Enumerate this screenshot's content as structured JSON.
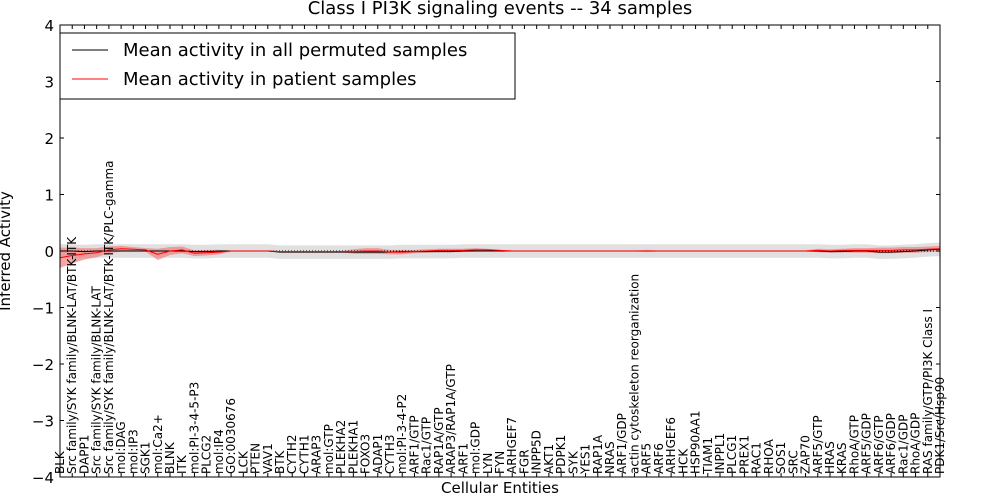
{
  "chart_data": {
    "type": "line",
    "title": "Class I PI3K signaling events -- 34 samples",
    "xlabel": "Cellular Entities",
    "ylabel": "Inferred Activity",
    "ylim": [
      -4,
      4
    ],
    "yticks": [
      "4",
      "3",
      "2",
      "1",
      "0",
      "−1",
      "−2",
      "−3",
      "−4"
    ],
    "ytick_values": [
      4,
      3,
      2,
      1,
      0,
      -1,
      -2,
      -3,
      -4
    ],
    "grid": false,
    "legend_position": "top-left",
    "categories": [
      "BLK",
      "Src family/SYK family/BLNK-LAT/BTK-ITK",
      "DAPP1",
      "Src family/SYK family/BLNK-LAT",
      "Src family/SYK family/BLNK-LAT/BTK-ITK/PLC-gamma",
      "mol:DAG",
      "mol:IP3",
      "SGK1",
      "mol:Ca2+",
      "BLNK",
      "ITK",
      "mol:PI-3-4-5-P3",
      "PLCG2",
      "mol:IP4",
      "GO:0030676",
      "LCK",
      "PTEN",
      "VAV1",
      "BTK",
      "CYTH2",
      "CYTH1",
      "ARAP3",
      "mol:GTP",
      "PLEKHA2",
      "PLEKHA1",
      "FOXO3",
      "ADAP1",
      "CYTH3",
      "mol:PI-3-4-P2",
      "ARF1/GTP",
      "Rac1/GTP",
      "RAP1A/GTP",
      "ARAP3/RAP1A/GTP",
      "ARF1",
      "mol:GDP",
      "LYN",
      "FYN",
      "ARHGEF7",
      "FGR",
      "INPP5D",
      "AKT1",
      "PDPK1",
      "SYK",
      "YES1",
      "RAP1A",
      "NRAS",
      "ARF1/GDP",
      "actin cytoskeleton reorganization",
      "ARF5",
      "ARF6",
      "ARHGEF6",
      "HCK",
      "HSP90AA1",
      "TIAM1",
      "INPPL1",
      "PLCG1",
      "PREX1",
      "RAC1",
      "RHOA",
      "SOS1",
      "SRC",
      "ZAP70",
      "ARF5/GTP",
      "HRAS",
      "KRAS",
      "RhoA/GTP",
      "ARF5/GDP",
      "ARF6/GTP",
      "ARF6/GDP",
      "Rac1/GDP",
      "RhoA/GDP",
      "RAS family/GTP/PI3K Class I",
      "PDK1/Src/Hsp90"
    ],
    "series": [
      {
        "name": "Mean activity in all permuted samples",
        "color": "#000000",
        "values": [
          0.0,
          0.0,
          -0.01,
          0.0,
          0.0,
          0.0,
          0.0,
          0.0,
          0.0,
          0.0,
          0.0,
          -0.01,
          -0.01,
          0.0,
          0.0,
          0.0,
          0.0,
          0.0,
          -0.02,
          -0.02,
          -0.02,
          -0.02,
          -0.02,
          -0.02,
          -0.02,
          -0.02,
          -0.02,
          -0.02,
          -0.01,
          -0.01,
          -0.01,
          -0.01,
          -0.01,
          0.0,
          0.0,
          0.0,
          0.0,
          0.0,
          0.0,
          0.0,
          0.0,
          0.0,
          0.0,
          0.0,
          0.0,
          0.0,
          0.0,
          0.0,
          0.0,
          0.0,
          0.0,
          0.0,
          0.0,
          0.0,
          0.0,
          0.0,
          0.0,
          0.0,
          0.0,
          0.0,
          0.0,
          0.0,
          0.0,
          -0.01,
          -0.01,
          0.0,
          0.0,
          -0.02,
          -0.02,
          -0.01,
          0.0,
          0.02,
          0.03
        ],
        "band": 0.12
      },
      {
        "name": "Mean activity in patient samples",
        "color": "#ff0000",
        "fill": "#f08080",
        "values": [
          -0.12,
          -0.08,
          -0.05,
          -0.03,
          0.02,
          0.04,
          0.03,
          0.02,
          -0.06,
          0.0,
          0.02,
          -0.04,
          -0.03,
          -0.02,
          0.0,
          0.0,
          0.0,
          0.0,
          -0.01,
          -0.01,
          -0.01,
          -0.01,
          -0.01,
          -0.01,
          -0.01,
          0.0,
          0.0,
          -0.02,
          -0.02,
          -0.01,
          0.0,
          0.01,
          0.01,
          0.01,
          0.02,
          0.02,
          0.01,
          0.0,
          0.0,
          0.0,
          0.0,
          0.0,
          0.0,
          0.0,
          0.0,
          0.0,
          0.0,
          0.0,
          0.0,
          0.0,
          0.0,
          0.0,
          0.0,
          0.0,
          0.0,
          0.0,
          0.0,
          0.0,
          0.0,
          0.0,
          0.0,
          0.0,
          0.01,
          0.0,
          0.01,
          0.01,
          0.01,
          0.01,
          0.01,
          0.02,
          0.02,
          0.03,
          0.04
        ],
        "band": [
          0.18,
          0.14,
          0.1,
          0.08,
          0.06,
          0.05,
          0.04,
          0.03,
          0.1,
          0.07,
          0.06,
          0.05,
          0.05,
          0.04,
          0.01,
          0.01,
          0.01,
          0.01,
          0.01,
          0.01,
          0.01,
          0.01,
          0.01,
          0.01,
          0.04,
          0.05,
          0.05,
          0.04,
          0.04,
          0.03,
          0.03,
          0.03,
          0.03,
          0.03,
          0.03,
          0.02,
          0.01,
          0.01,
          0.01,
          0.01,
          0.01,
          0.01,
          0.01,
          0.01,
          0.01,
          0.01,
          0.01,
          0.01,
          0.02,
          0.01,
          0.01,
          0.01,
          0.01,
          0.01,
          0.01,
          0.01,
          0.01,
          0.01,
          0.01,
          0.01,
          0.01,
          0.01,
          0.03,
          0.03,
          0.03,
          0.04,
          0.04,
          0.05,
          0.05,
          0.05,
          0.05,
          0.05,
          0.05
        ]
      }
    ]
  }
}
